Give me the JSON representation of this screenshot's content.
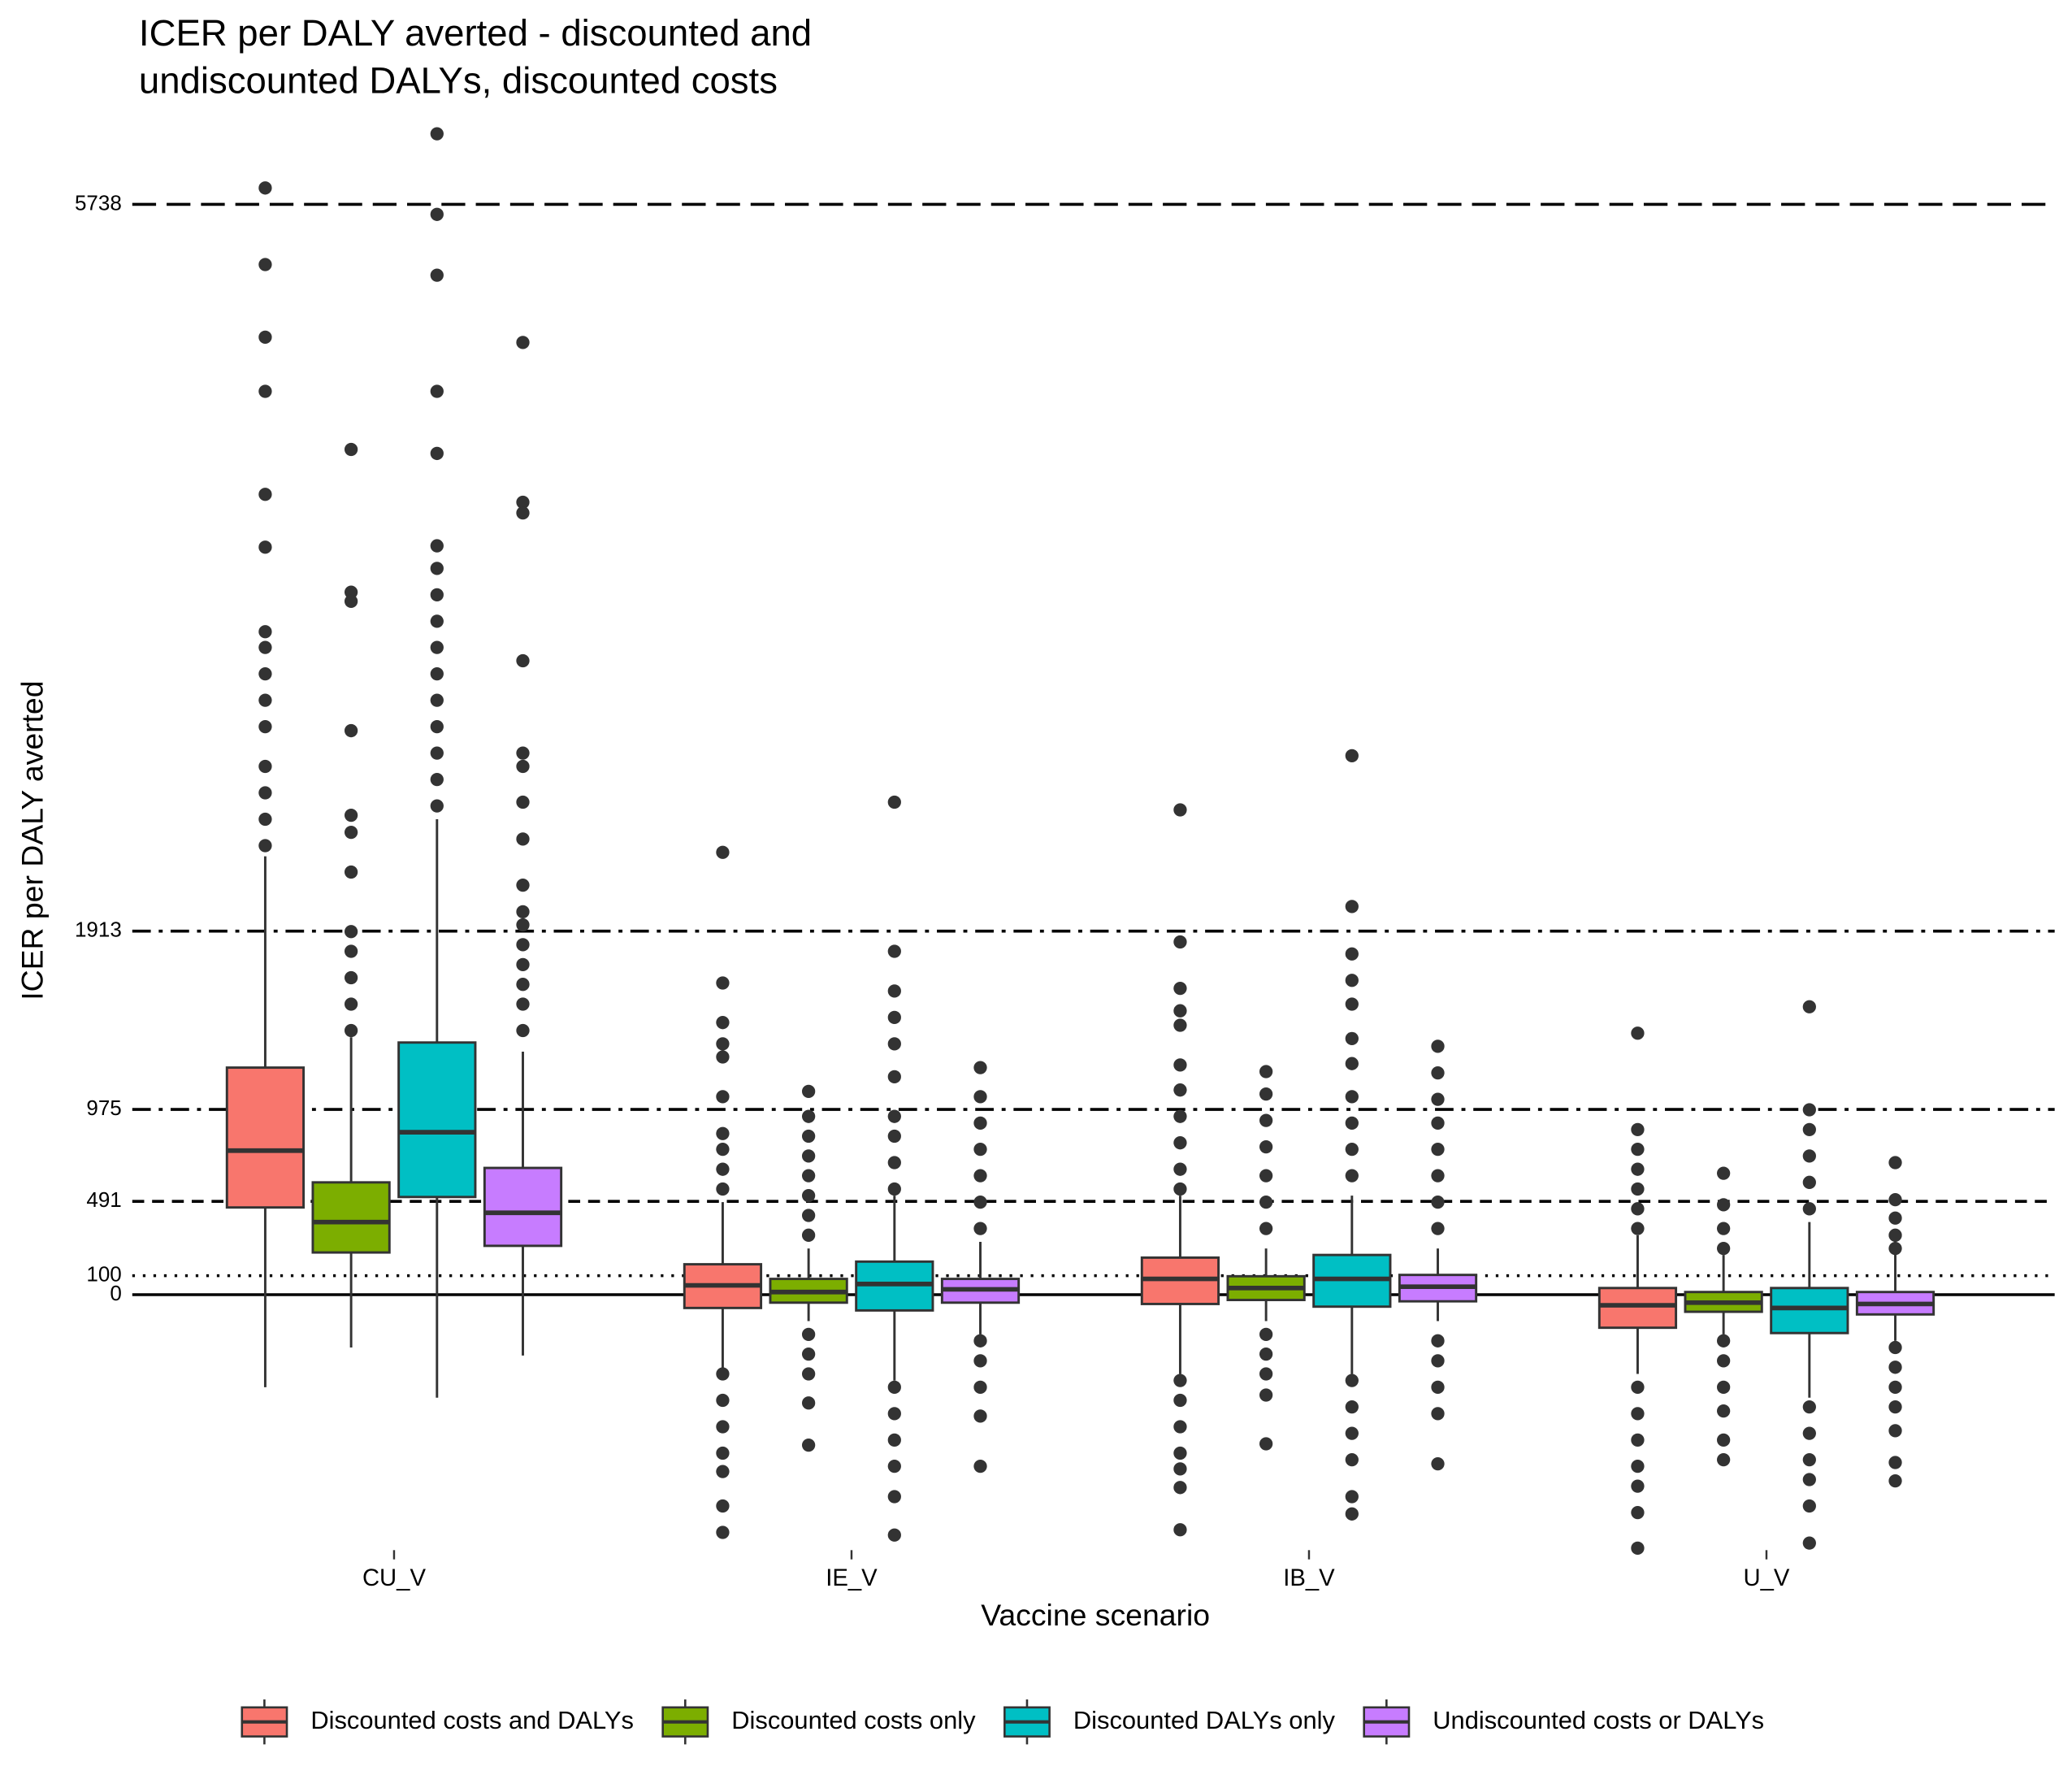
{
  "chart_data": {
    "type": "boxplot",
    "title": "ICER per DALY averted - discounted and\nundiscounted DALYs, discounted costs",
    "x_label": "Vaccine scenario",
    "y_label": "ICER per DALY averted",
    "categories": [
      "CU_V",
      "IE_V",
      "IB_V",
      "U_V"
    ],
    "ylim": [
      -1400,
      6250
    ],
    "yticks": [
      0,
      100,
      491,
      975,
      1913,
      5738
    ],
    "reference_lines": [
      {
        "value": 5738,
        "linetype": "longdash"
      },
      {
        "value": 1913,
        "linetype": "dotdash"
      },
      {
        "value": 975,
        "linetype": "dotdash"
      },
      {
        "value": 491,
        "linetype": "dashed"
      },
      {
        "value": 100,
        "linetype": "dotted"
      },
      {
        "value": 0,
        "linetype": "solid"
      }
    ],
    "legend_position": "bottom",
    "series": [
      {
        "name": "Discounted costs and DALYs",
        "color": "#f8766d",
        "stats": [
          {
            "q1": 459,
            "median": 758,
            "q3": 1195,
            "whisker_low": -487,
            "whisker_high": 2307,
            "outliers": [
              5824,
              5421,
              5039,
              4754,
              4212,
              3934,
              3489,
              3406,
              3267,
              3128,
              2989,
              2780,
              2641,
              2502,
              2363
            ]
          },
          {
            "q1": -70,
            "median": 49,
            "q3": 160,
            "whisker_low": -417,
            "whisker_high": 487,
            "outliers": [
              2328,
              1640,
              1432,
              1320,
              1251,
              1042,
              848,
              765,
              660,
              556,
              -417,
              -556,
              -695,
              -834,
              -931,
              -1112,
              -1251
            ]
          },
          {
            "q1": -49,
            "median": 83,
            "q3": 195,
            "whisker_low": -417,
            "whisker_high": 521,
            "outliers": [
              2551,
              1856,
              1612,
              1494,
              1418,
              1209,
              1077,
              938,
              799,
              660,
              556,
              -452,
              -556,
              -695,
              -834,
              -917,
              -1015,
              -1237
            ]
          },
          {
            "q1": -174,
            "median": -56,
            "q3": 35,
            "whisker_low": -417,
            "whisker_high": 313,
            "outliers": [
              1376,
              869,
              765,
              660,
              556,
              452,
              348,
              -487,
              -626,
              -765,
              -903,
              -1008,
              -1147,
              -1334
            ]
          }
        ]
      },
      {
        "name": "Discounted costs only",
        "color": "#7cae00",
        "stats": [
          {
            "q1": 222,
            "median": 382,
            "q3": 591,
            "whisker_low": -278,
            "whisker_high": 1355,
            "outliers": [
              4448,
              3697,
              3649,
              2968,
              2523,
              2433,
              2224,
              1911,
              1807,
              1668,
              1529,
              1390
            ]
          },
          {
            "q1": -42,
            "median": 14,
            "q3": 83,
            "whisker_low": -139,
            "whisker_high": 243,
            "outliers": [
              1070,
              938,
              834,
              730,
              626,
              521,
              417,
              313,
              -209,
              -313,
              -417,
              -570,
              -792
            ]
          },
          {
            "q1": -28,
            "median": 35,
            "q3": 97,
            "whisker_low": -139,
            "whisker_high": 243,
            "outliers": [
              1174,
              1056,
              917,
              778,
              626,
              487,
              348,
              -209,
              -313,
              -417,
              -528,
              -785
            ]
          },
          {
            "q1": -90,
            "median": -42,
            "q3": 14,
            "whisker_low": -209,
            "whisker_high": 209,
            "outliers": [
              639,
              473,
              348,
              243,
              -243,
              -348,
              -487,
              -612,
              -765,
              -869
            ]
          }
        ]
      },
      {
        "name": "Discounted DALYs only",
        "color": "#00bfc4",
        "stats": [
          {
            "q1": 514,
            "median": 855,
            "q3": 1327,
            "whisker_low": -542,
            "whisker_high": 2502,
            "outliers": [
              6109,
              5685,
              5365,
              4754,
              4427,
              3941,
              3822,
              3683,
              3544,
              3406,
              3267,
              3128,
              2989,
              2850,
              2711,
              2572
            ]
          },
          {
            "q1": -83,
            "median": 56,
            "q3": 174,
            "whisker_low": -452,
            "whisker_high": 521,
            "outliers": [
              2592,
              1807,
              1598,
              1459,
              1320,
              1147,
              938,
              834,
              695,
              556,
              -487,
              -626,
              -765,
              -903,
              -1063,
              -1265
            ]
          },
          {
            "q1": -63,
            "median": 83,
            "q3": 209,
            "whisker_low": -417,
            "whisker_high": 521,
            "outliers": [
              2836,
              2043,
              1793,
              1654,
              1529,
              1348,
              1216,
              1042,
              903,
              765,
              626,
              -452,
              -591,
              -730,
              -869,
              -1063,
              -1154
            ]
          },
          {
            "q1": -202,
            "median": -70,
            "q3": 35,
            "whisker_low": -542,
            "whisker_high": 382,
            "outliers": [
              1515,
              973,
              869,
              730,
              591,
              452,
              -591,
              -730,
              -869,
              -973,
              -1112,
              -1307
            ]
          }
        ]
      },
      {
        "name": "Undiscounted costs or DALYs",
        "color": "#c77cff",
        "stats": [
          {
            "q1": 257,
            "median": 431,
            "q3": 667,
            "whisker_low": -320,
            "whisker_high": 1279,
            "outliers": [
              5011,
              4170,
              4114,
              3336,
              2850,
              2780,
              2592,
              2398,
              2155,
              2015,
              1946,
              1842,
              1737,
              1633,
              1529,
              1390
            ]
          },
          {
            "q1": -42,
            "median": 28,
            "q3": 83,
            "whisker_low": -209,
            "whisker_high": 278,
            "outliers": [
              1195,
              1042,
              903,
              765,
              626,
              487,
              348,
              -243,
              -348,
              -487,
              -639,
              -903
            ]
          },
          {
            "q1": -35,
            "median": 42,
            "q3": 104,
            "whisker_low": -139,
            "whisker_high": 243,
            "outliers": [
              1307,
              1167,
              1028,
              903,
              765,
              626,
              487,
              348,
              -243,
              -348,
              -487,
              -626,
              -890
            ]
          },
          {
            "q1": -104,
            "median": -49,
            "q3": 14,
            "whisker_low": -243,
            "whisker_high": 292,
            "outliers": [
              695,
              500,
              403,
              313,
              243,
              -278,
              -382,
              -487,
              -591,
              -716,
              -883,
              -980
            ]
          }
        ]
      }
    ]
  }
}
